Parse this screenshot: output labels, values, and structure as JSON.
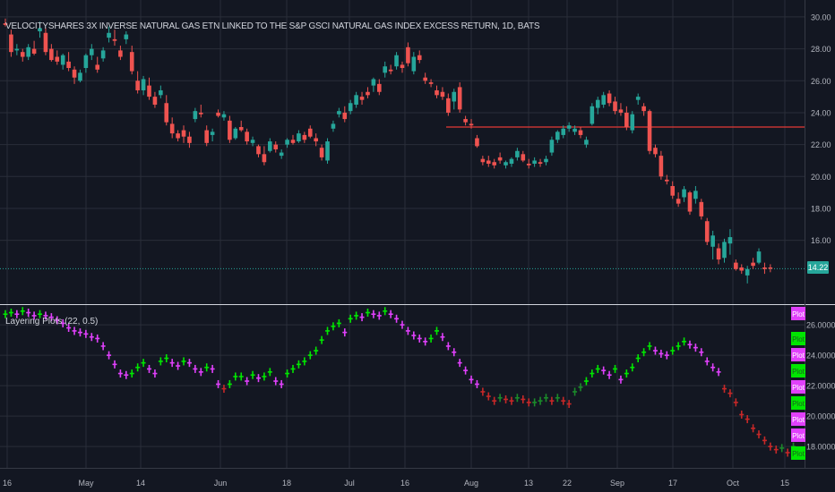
{
  "header": {
    "title": "VELOCITYSHARES 3X INVERSE NATURAL GAS ETN LINKED TO THE S&P GSCI NATURAL GAS INDEX EXCESS RETURN, 1D, BATS"
  },
  "indicator": {
    "title": "Layering Plots (22, 0.5)"
  },
  "last_price": "14.22",
  "colors": {
    "background": "#131722",
    "grid": "#2a2e39",
    "up": "#26a69a",
    "down": "#ef5350",
    "hline": "#e53935",
    "magenta": "#e040fb",
    "green": "#00e600",
    "darkred": "#c62828",
    "darkgreen": "#1b8a2a"
  },
  "chart_data": [
    {
      "type": "candlestick",
      "title": "VELOCITYSHARES 3X INVERSE NATURAL GAS ETN LINKED TO THE S&P GSCI NATURAL GAS INDEX EXCESS RETURN, 1D, BATS",
      "ylim": [
        12.0,
        30.5
      ],
      "y_ticks": [
        "30.00",
        "28.00",
        "26.00",
        "24.00",
        "22.00",
        "20.00",
        "18.00",
        "16.00"
      ],
      "x_ticks": [
        "16",
        "May",
        "14",
        "Jun",
        "18",
        "Jul",
        "16",
        "Aug",
        "13",
        "22",
        "Sep",
        "17",
        "Oct",
        "15"
      ],
      "horizontal_line": 23.1,
      "last_price": 14.22,
      "candles": [
        [
          29.6,
          29.9,
          29.4,
          29.5
        ],
        [
          28.9,
          29.2,
          27.5,
          27.8
        ],
        [
          27.9,
          28.3,
          27.6,
          28.0
        ],
        [
          27.8,
          28.0,
          27.2,
          27.5
        ],
        [
          27.5,
          28.3,
          27.3,
          28.1
        ],
        [
          28.0,
          28.5,
          27.6,
          27.7
        ],
        [
          29.1,
          29.7,
          28.7,
          29.3
        ],
        [
          29.0,
          29.3,
          27.6,
          27.8
        ],
        [
          28.0,
          28.3,
          27.2,
          27.3
        ],
        [
          27.5,
          27.9,
          27.0,
          27.2
        ],
        [
          27.0,
          27.7,
          26.7,
          27.6
        ],
        [
          27.2,
          27.8,
          26.6,
          26.8
        ],
        [
          26.7,
          26.9,
          25.8,
          26.2
        ],
        [
          26.0,
          26.7,
          25.9,
          26.5
        ],
        [
          26.8,
          27.7,
          26.5,
          27.6
        ],
        [
          27.6,
          28.3,
          27.3,
          28.0
        ],
        [
          27.0,
          27.5,
          26.5,
          26.7
        ],
        [
          27.4,
          28.1,
          27.2,
          27.9
        ],
        [
          28.7,
          29.4,
          28.4,
          29.0
        ],
        [
          28.6,
          29.2,
          28.2,
          28.5
        ],
        [
          27.9,
          28.2,
          27.3,
          27.5
        ],
        [
          28.6,
          29.1,
          28.3,
          28.9
        ],
        [
          27.8,
          28.2,
          26.4,
          26.6
        ],
        [
          26.0,
          26.6,
          25.2,
          25.4
        ],
        [
          25.4,
          26.3,
          25.1,
          26.1
        ],
        [
          25.7,
          26.2,
          24.8,
          25.0
        ],
        [
          25.0,
          25.3,
          24.3,
          24.5
        ],
        [
          25.1,
          25.7,
          24.9,
          25.4
        ],
        [
          24.6,
          25.1,
          23.2,
          23.4
        ],
        [
          23.3,
          23.7,
          22.4,
          22.7
        ],
        [
          22.7,
          22.9,
          22.2,
          22.4
        ],
        [
          22.9,
          23.2,
          22.1,
          22.5
        ],
        [
          22.5,
          22.8,
          21.8,
          22.1
        ],
        [
          23.6,
          24.3,
          23.4,
          24.1
        ],
        [
          24.0,
          24.5,
          23.7,
          23.9
        ],
        [
          22.9,
          23.2,
          21.9,
          22.1
        ],
        [
          22.6,
          23.0,
          22.2,
          22.8
        ],
        [
          24.0,
          24.2,
          23.7,
          23.8
        ],
        [
          23.7,
          24.1,
          23.5,
          23.9
        ],
        [
          23.5,
          23.8,
          22.1,
          22.3
        ],
        [
          22.4,
          23.1,
          22.3,
          23.0
        ],
        [
          23.1,
          23.5,
          22.8,
          22.9
        ],
        [
          22.8,
          23.0,
          22.0,
          22.2
        ],
        [
          22.1,
          22.5,
          21.9,
          22.3
        ],
        [
          21.9,
          22.0,
          21.2,
          21.4
        ],
        [
          21.4,
          21.9,
          20.7,
          20.9
        ],
        [
          21.6,
          22.4,
          21.5,
          22.2
        ],
        [
          22.0,
          22.2,
          21.5,
          21.7
        ],
        [
          21.3,
          21.7,
          21.1,
          21.5
        ],
        [
          22.0,
          22.4,
          21.8,
          22.3
        ],
        [
          22.3,
          22.6,
          22.0,
          22.1
        ],
        [
          22.2,
          22.9,
          22.1,
          22.7
        ],
        [
          22.6,
          22.8,
          22.1,
          22.3
        ],
        [
          23.0,
          23.2,
          22.4,
          22.5
        ],
        [
          22.4,
          22.7,
          21.9,
          22.2
        ],
        [
          21.8,
          22.0,
          21.0,
          21.2
        ],
        [
          21.0,
          22.4,
          20.8,
          22.2
        ],
        [
          23.0,
          23.5,
          22.8,
          23.3
        ],
        [
          23.9,
          24.3,
          23.7,
          24.1
        ],
        [
          24.0,
          24.4,
          23.4,
          23.6
        ],
        [
          24.1,
          24.8,
          23.9,
          24.6
        ],
        [
          24.5,
          25.3,
          24.3,
          25.1
        ],
        [
          25.0,
          25.3,
          24.5,
          24.8
        ],
        [
          25.3,
          25.6,
          24.9,
          25.1
        ],
        [
          25.7,
          26.2,
          25.3,
          26.1
        ],
        [
          25.8,
          26.1,
          25.1,
          25.3
        ],
        [
          26.5,
          27.2,
          26.2,
          26.9
        ],
        [
          26.7,
          27.0,
          26.4,
          26.6
        ],
        [
          26.9,
          27.8,
          26.7,
          27.6
        ],
        [
          27.0,
          27.2,
          26.5,
          26.8
        ],
        [
          28.1,
          28.4,
          26.9,
          27.1
        ],
        [
          26.6,
          27.8,
          26.4,
          27.5
        ],
        [
          27.6,
          27.9,
          27.1,
          27.3
        ],
        [
          26.2,
          26.5,
          25.8,
          26.0
        ],
        [
          25.9,
          26.1,
          25.6,
          25.8
        ],
        [
          25.4,
          25.7,
          24.9,
          25.1
        ],
        [
          25.3,
          25.6,
          24.8,
          25.0
        ],
        [
          24.9,
          25.2,
          23.8,
          24.0
        ],
        [
          24.7,
          25.5,
          24.2,
          25.3
        ],
        [
          25.6,
          25.9,
          24.0,
          24.2
        ],
        [
          23.6,
          23.8,
          23.2,
          23.4
        ],
        [
          23.3,
          23.6,
          23.0,
          23.2
        ],
        [
          22.4,
          22.6,
          21.8,
          21.9
        ],
        [
          21.1,
          21.3,
          20.7,
          20.9
        ],
        [
          21.0,
          21.3,
          20.6,
          20.8
        ],
        [
          20.9,
          21.1,
          20.5,
          20.7
        ],
        [
          21.2,
          21.5,
          20.8,
          21.0
        ],
        [
          20.7,
          21.0,
          20.5,
          20.9
        ],
        [
          20.8,
          21.2,
          20.6,
          21.1
        ],
        [
          21.2,
          21.8,
          21.0,
          21.6
        ],
        [
          21.4,
          21.6,
          20.9,
          21.0
        ],
        [
          20.8,
          21.1,
          20.5,
          20.7
        ],
        [
          20.8,
          21.2,
          20.6,
          21.0
        ],
        [
          20.9,
          21.1,
          20.6,
          20.8
        ],
        [
          20.9,
          21.3,
          20.7,
          21.1
        ],
        [
          21.5,
          22.5,
          21.3,
          22.3
        ],
        [
          22.3,
          22.9,
          22.1,
          22.8
        ],
        [
          22.6,
          23.2,
          22.4,
          23.0
        ],
        [
          23.0,
          23.4,
          22.8,
          23.2
        ],
        [
          22.8,
          23.2,
          22.6,
          23.0
        ],
        [
          22.9,
          23.1,
          22.4,
          22.6
        ],
        [
          22.0,
          22.5,
          21.8,
          22.3
        ],
        [
          23.3,
          24.6,
          23.2,
          24.4
        ],
        [
          24.3,
          25.0,
          23.9,
          24.8
        ],
        [
          24.5,
          25.3,
          24.3,
          25.1
        ],
        [
          25.2,
          25.4,
          24.4,
          24.6
        ],
        [
          24.7,
          25.0,
          23.9,
          24.1
        ],
        [
          24.2,
          24.6,
          23.8,
          24.0
        ],
        [
          24.0,
          24.4,
          22.9,
          23.1
        ],
        [
          22.9,
          24.1,
          22.7,
          23.9
        ],
        [
          24.8,
          25.2,
          24.5,
          25.0
        ],
        [
          24.4,
          24.6,
          23.8,
          24.1
        ],
        [
          24.1,
          24.2,
          21.4,
          21.6
        ],
        [
          21.8,
          22.0,
          21.2,
          21.4
        ],
        [
          21.3,
          21.6,
          19.8,
          20.0
        ],
        [
          19.8,
          20.1,
          19.5,
          19.7
        ],
        [
          19.4,
          19.7,
          18.6,
          18.8
        ],
        [
          18.6,
          19.0,
          18.1,
          18.3
        ],
        [
          18.7,
          19.4,
          18.4,
          19.2
        ],
        [
          19.0,
          19.1,
          17.6,
          17.8
        ],
        [
          18.6,
          19.4,
          18.3,
          19.1
        ],
        [
          18.4,
          18.6,
          17.3,
          17.5
        ],
        [
          17.2,
          17.4,
          15.7,
          15.9
        ],
        [
          15.6,
          16.6,
          14.8,
          16.3
        ],
        [
          15.5,
          15.8,
          14.5,
          14.8
        ],
        [
          14.9,
          16.1,
          14.6,
          15.9
        ],
        [
          15.8,
          16.7,
          15.1,
          16.2
        ],
        [
          14.6,
          14.8,
          14.1,
          14.2
        ],
        [
          14.3,
          14.5,
          13.9,
          14.1
        ],
        [
          13.8,
          14.4,
          13.3,
          14.2
        ],
        [
          14.6,
          14.9,
          14.2,
          14.4
        ],
        [
          14.6,
          15.5,
          14.5,
          15.3
        ],
        [
          14.3,
          14.6,
          13.9,
          14.2
        ],
        [
          14.3,
          14.5,
          14.0,
          14.22
        ]
      ]
    },
    {
      "type": "scatter",
      "title": "Layering Plots (22, 0.5)",
      "ylim": [
        16.6,
        27.3
      ],
      "y_ticks": [
        "26.0000",
        "24.0000",
        "22.0000",
        "20.0000",
        "18.0000"
      ],
      "legend": [
        "Plot",
        "Plot",
        "Plot",
        "Plot",
        "Plot",
        "Plot",
        "Plot",
        "Plot",
        "Plot"
      ],
      "legend_colors": [
        "magenta",
        "green",
        "magenta",
        "green",
        "magenta",
        "green",
        "magenta",
        "magenta",
        "green"
      ],
      "plot_values": [
        26.7,
        26.8,
        26.7,
        26.9,
        26.8,
        26.6,
        26.7,
        26.6,
        26.5,
        26.3,
        26.1,
        25.8,
        25.6,
        25.5,
        25.4,
        25.2,
        25.1,
        24.6,
        24.0,
        23.4,
        22.8,
        22.7,
        22.8,
        23.2,
        23.5,
        23.1,
        22.8,
        23.6,
        23.8,
        23.5,
        23.3,
        23.6,
        23.5,
        23.1,
        22.9,
        23.2,
        23.1,
        22.1,
        21.8,
        22.1,
        22.6,
        22.6,
        22.3,
        22.7,
        22.5,
        22.6,
        22.9,
        22.3,
        22.1,
        22.8,
        23.1,
        23.4,
        23.6,
        24.0,
        24.3,
        25.0,
        25.6,
        25.9,
        26.1,
        25.5,
        26.4,
        26.6,
        26.5,
        26.8,
        26.7,
        26.6,
        26.9,
        26.7,
        26.4,
        26.0,
        25.6,
        25.3,
        25.1,
        24.9,
        25.1,
        25.6,
        25.2,
        24.6,
        24.2,
        23.5,
        23.0,
        22.4,
        22.1,
        21.6,
        21.3,
        21.0,
        21.2,
        21.1,
        21.0,
        21.2,
        21.1,
        20.9,
        20.9,
        21.0,
        21.2,
        21.0,
        21.2,
        21.0,
        20.8,
        21.6,
        21.9,
        22.3,
        22.8,
        23.1,
        23.0,
        22.7,
        23.1,
        22.4,
        22.8,
        23.2,
        23.8,
        24.2,
        24.6,
        24.3,
        24.1,
        24.0,
        24.3,
        24.6,
        24.9,
        24.7,
        24.5,
        24.2,
        23.6,
        23.2,
        22.9,
        21.8,
        21.5,
        20.9,
        20.1,
        19.8,
        19.2,
        18.8,
        18.4,
        18.0,
        17.8,
        17.9,
        17.6,
        18.0,
        17.4
      ]
    }
  ]
}
